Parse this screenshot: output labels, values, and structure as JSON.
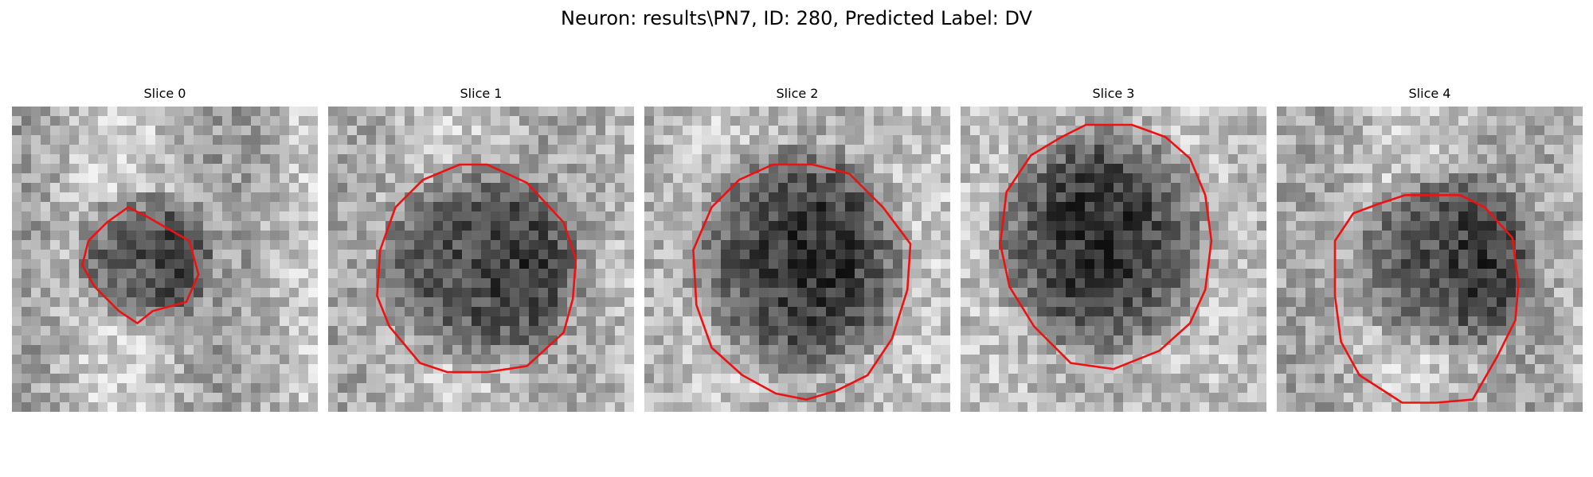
{
  "figure": {
    "title": "Neuron: results\\PN7, ID: 280, Predicted Label: DV"
  },
  "panels": [
    {
      "title": "Slice 0"
    },
    {
      "title": "Slice 1"
    },
    {
      "title": "Slice 2"
    },
    {
      "title": "Slice 3"
    },
    {
      "title": "Slice 4"
    }
  ],
  "colors": {
    "contour": "#ee1111",
    "background": "#ffffff"
  }
}
